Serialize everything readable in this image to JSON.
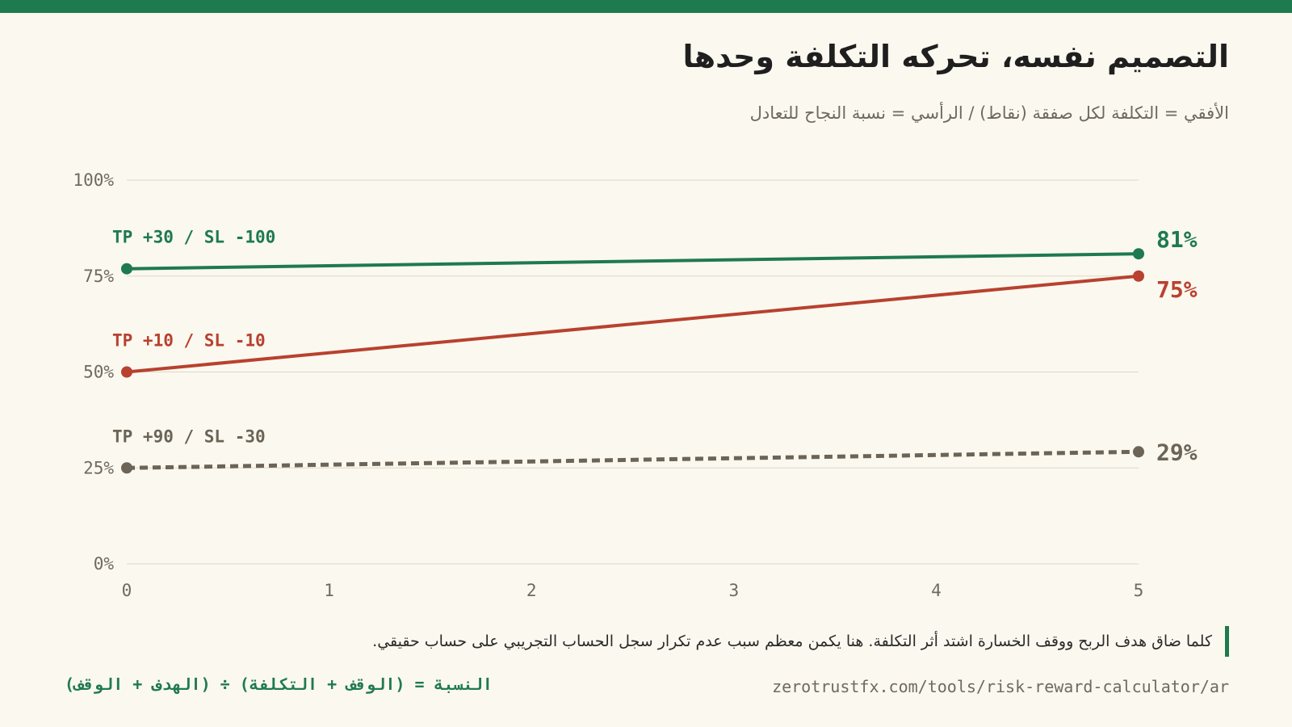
{
  "header": {
    "title": "التصميم نفسه، تحركه التكلفة وحدها",
    "subtitle": "الأفقي = التكلفة لكل صفقة (نقاط) / الرأسي = نسبة النجاح للتعادل"
  },
  "footer": {
    "note": "كلما ضاق هدف الربح ووقف الخسارة اشتد أثر التكلفة. هنا يكمن معظم سبب عدم تكرار سجل الحساب التجريبي على حساب حقيقي.",
    "formula": "النسبة = (الوقف + التكلفة) ÷ (الهدف + الوقف)",
    "url": "zerotrustfx.com/tools/risk-reward-calculator/ar"
  },
  "colors": {
    "accent": "#1e7a4f",
    "red": "#b8412f",
    "gray": "#6b6457",
    "grid": "#ddd8c8",
    "axis_text": "#6f6a60"
  },
  "chart_data": {
    "type": "line",
    "title": "",
    "xlabel": "",
    "ylabel": "",
    "x": [
      0,
      5
    ],
    "xlim": [
      0,
      5
    ],
    "ylim": [
      0,
      100
    ],
    "x_ticks": [
      "0",
      "1",
      "2",
      "3",
      "4",
      "5"
    ],
    "y_ticks": [
      "0%",
      "25%",
      "50%",
      "75%",
      "100%"
    ],
    "grid": true,
    "series": [
      {
        "name": "TP +30 / SL -100",
        "values": [
          76.9,
          80.8
        ],
        "end_label": "81%",
        "color": "#1e7a4f",
        "style": "solid"
      },
      {
        "name": "TP +10 / SL -10",
        "values": [
          50,
          75
        ],
        "end_label": "75%",
        "color": "#b8412f",
        "style": "solid"
      },
      {
        "name": "TP +90 / SL -30",
        "values": [
          25,
          29.2
        ],
        "end_label": "29%",
        "color": "#6b6457",
        "style": "dashed"
      }
    ]
  }
}
